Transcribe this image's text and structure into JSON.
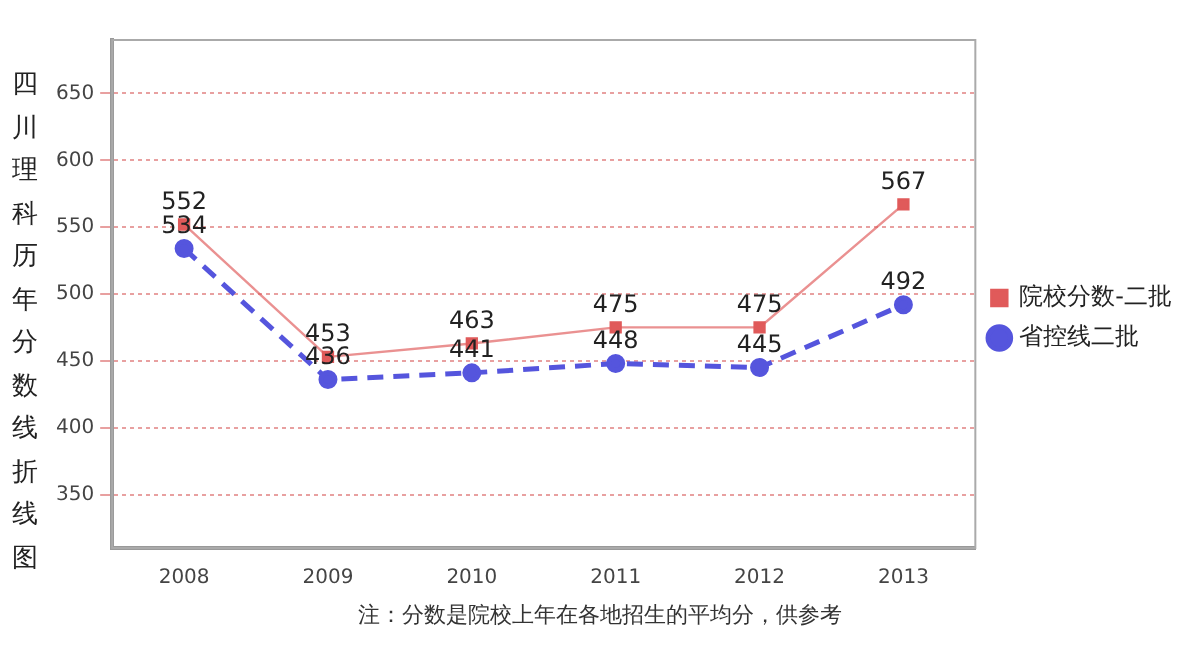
{
  "chart_data": {
    "type": "line",
    "ylabel": "四川理科历年分数线折线图",
    "categories": [
      "2008",
      "2009",
      "2010",
      "2011",
      "2012",
      "2013"
    ],
    "series": [
      {
        "name": "院校分数-二批",
        "color": "#e05a5a",
        "marker": "square",
        "line_style": "solid",
        "values": [
          552,
          453,
          463,
          475,
          475,
          567
        ]
      },
      {
        "name": "省控线二批",
        "color": "#5555dd",
        "marker": "circle",
        "line_style": "dashed",
        "values": [
          534,
          436,
          441,
          448,
          445,
          492
        ]
      }
    ],
    "ylim": [
      310,
      690
    ],
    "yticks": [
      350,
      400,
      450,
      500,
      550,
      600,
      650
    ],
    "grid": "y",
    "legend": "right",
    "data_labels": true,
    "annotations": [
      "注：分数是院校上年在各地招生的平均分，供参考"
    ]
  }
}
